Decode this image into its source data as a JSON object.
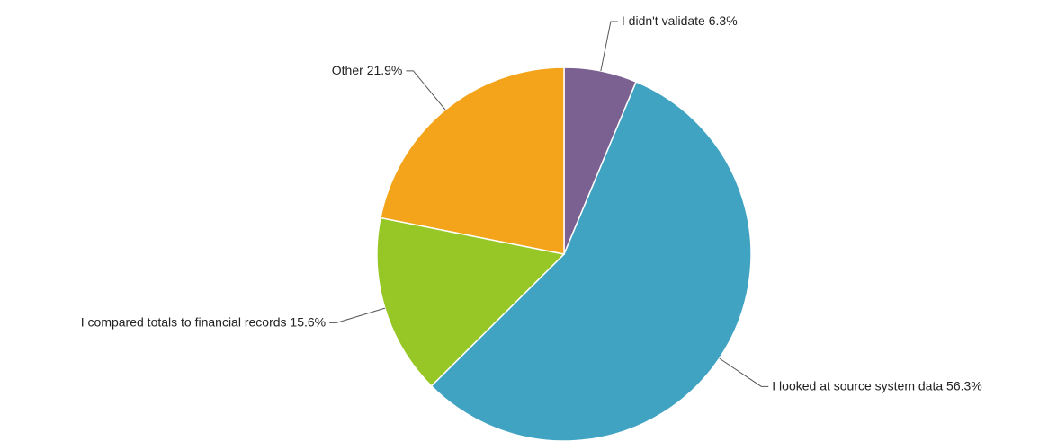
{
  "chart_data": {
    "type": "pie",
    "categories": [
      "I didn't validate",
      "I looked at source system data",
      "I compared totals to financial records",
      "Other"
    ],
    "values": [
      6.3,
      56.3,
      15.6,
      21.9
    ],
    "value_labels": [
      "6.3%",
      "56.3%",
      "15.6%",
      "21.9%"
    ],
    "colors": [
      "#7b6191",
      "#41a3c2",
      "#96c726",
      "#f4a41a"
    ]
  }
}
